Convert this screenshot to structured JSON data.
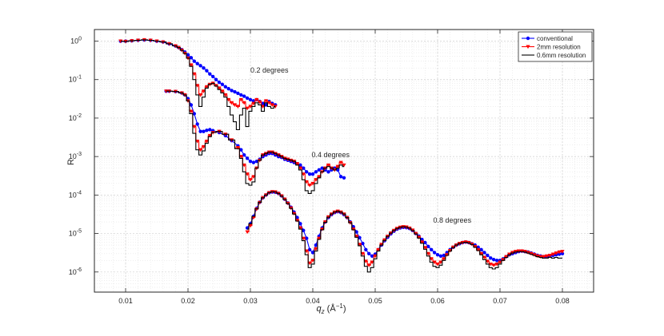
{
  "chart_data": {
    "type": "line",
    "title": "",
    "xlabel": "q",
    "xlabel_sub": "z",
    "xlabel_unit": " (Å",
    "xlabel_unit_exp": "−1",
    "xlabel_close": ")",
    "ylabel": "R",
    "xlim": [
      0.005,
      0.085
    ],
    "ylim": [
      3e-07,
      2
    ],
    "yscale": "log",
    "grid": true,
    "legend_position": "top-right",
    "x_ticks": [
      {
        "v": 0.01,
        "label": "0.01"
      },
      {
        "v": 0.02,
        "label": "0.02"
      },
      {
        "v": 0.03,
        "label": "0.03"
      },
      {
        "v": 0.04,
        "label": "0.04"
      },
      {
        "v": 0.05,
        "label": "0.05"
      },
      {
        "v": 0.06,
        "label": "0.06"
      },
      {
        "v": 0.07,
        "label": "0.07"
      },
      {
        "v": 0.08,
        "label": "0.08"
      }
    ],
    "y_ticks": [
      {
        "v": 1,
        "base": "10",
        "exp": "0"
      },
      {
        "v": 0.1,
        "base": "10",
        "exp": "-1"
      },
      {
        "v": 0.01,
        "base": "10",
        "exp": "-2"
      },
      {
        "v": 0.001,
        "base": "10",
        "exp": "-3"
      },
      {
        "v": 0.0001,
        "base": "10",
        "exp": "-4"
      },
      {
        "v": 1e-05,
        "base": "10",
        "exp": "-5"
      },
      {
        "v": 1e-06,
        "base": "10",
        "exp": "-6"
      }
    ],
    "series_styles": [
      {
        "name": "conventional",
        "color": "#0000ff",
        "marker": "circle",
        "line": "solid"
      },
      {
        "name": "2mm resolution",
        "color": "#ff0000",
        "marker": "triangle-down",
        "line": "step"
      },
      {
        "name": "0.6mm resolution",
        "color": "#000000",
        "marker": "none",
        "line": "step"
      }
    ],
    "annotations": [
      {
        "text": "0.2 degrees",
        "x": 0.03,
        "y": 0.15
      },
      {
        "text": "0.4 degrees",
        "x": 0.0398,
        "y": 0.00095
      },
      {
        "text": "0.8 degrees",
        "x": 0.0593,
        "y": 1.9e-05
      }
    ],
    "groups": [
      {
        "name": "0.2 degrees",
        "x": [
          0.0092,
          0.01,
          0.011,
          0.012,
          0.013,
          0.014,
          0.015,
          0.016,
          0.017,
          0.018,
          0.0185,
          0.019,
          0.0195,
          0.02,
          0.0205,
          0.021,
          0.0215,
          0.022,
          0.0225,
          0.023,
          0.0235,
          0.024,
          0.0245,
          0.025,
          0.0255,
          0.026,
          0.0265,
          0.027,
          0.0275,
          0.028,
          0.0285,
          0.029,
          0.0295,
          0.03,
          0.0305,
          0.031,
          0.0315,
          0.032,
          0.0325,
          0.033,
          0.0335,
          0.034
        ],
        "series": [
          {
            "name": "conventional",
            "values": [
              1.0,
              1.0,
              1.02,
              1.05,
              1.07,
              1.05,
              1.0,
              0.95,
              0.85,
              0.75,
              0.68,
              0.6,
              0.52,
              0.44,
              0.37,
              0.3,
              0.26,
              0.23,
              0.2,
              0.17,
              0.14,
              0.12,
              0.1,
              0.085,
              0.075,
              0.065,
              0.058,
              0.052,
              0.048,
              0.044,
              0.04,
              0.037,
              0.033,
              0.03,
              0.028,
              0.03,
              0.027,
              0.024,
              0.022,
              0.027,
              0.024,
              0.022
            ]
          },
          {
            "name": "2mm resolution",
            "values": [
              1.0,
              0.98,
              1.02,
              1.05,
              1.08,
              1.05,
              1.0,
              0.95,
              0.85,
              0.75,
              0.68,
              0.58,
              0.48,
              0.36,
              0.24,
              0.14,
              0.07,
              0.04,
              0.05,
              0.065,
              0.075,
              0.08,
              0.07,
              0.06,
              0.05,
              0.04,
              0.03,
              0.025,
              0.022,
              0.02,
              0.03,
              0.025,
              0.018,
              0.02,
              0.024,
              0.03,
              0.026,
              0.02,
              0.028,
              0.025,
              0.022,
              0.02
            ]
          },
          {
            "name": "0.6mm resolution",
            "values": [
              1.0,
              0.98,
              1.02,
              1.05,
              1.08,
              1.05,
              1.0,
              0.95,
              0.85,
              0.75,
              0.68,
              0.58,
              0.48,
              0.36,
              0.22,
              0.1,
              0.04,
              0.02,
              0.035,
              0.06,
              0.075,
              0.08,
              0.068,
              0.055,
              0.045,
              0.035,
              0.02,
              0.012,
              0.008,
              0.005,
              0.012,
              0.018,
              0.006,
              0.015,
              0.02,
              0.025,
              0.022,
              0.015,
              0.025,
              0.02,
              0.018,
              0.02
            ]
          }
        ]
      },
      {
        "name": "0.4 degrees",
        "x": [
          0.0165,
          0.017,
          0.018,
          0.019,
          0.0195,
          0.02,
          0.0205,
          0.021,
          0.0215,
          0.022,
          0.0225,
          0.023,
          0.0235,
          0.024,
          0.025,
          0.026,
          0.027,
          0.028,
          0.0285,
          0.029,
          0.0295,
          0.03,
          0.0305,
          0.031,
          0.0315,
          0.032,
          0.0325,
          0.033,
          0.0335,
          0.034,
          0.0345,
          0.035,
          0.0355,
          0.036,
          0.0365,
          0.037,
          0.0375,
          0.038,
          0.0385,
          0.039,
          0.0395,
          0.04,
          0.0405,
          0.041,
          0.0415,
          0.042,
          0.0425,
          0.043,
          0.0435,
          0.044,
          0.0445,
          0.045
        ],
        "series": [
          {
            "name": "conventional",
            "values": [
              0.05,
              0.05,
              0.049,
              0.045,
              0.04,
              0.032,
              0.022,
              0.013,
              0.007,
              0.0045,
              0.0045,
              0.0048,
              0.005,
              0.0047,
              0.0042,
              0.0035,
              0.0026,
              0.0019,
              0.0015,
              0.0011,
              0.0009,
              0.00075,
              0.0007,
              0.00075,
              0.00085,
              0.001,
              0.0011,
              0.0012,
              0.0012,
              0.0011,
              0.001,
              0.00095,
              0.00085,
              0.0008,
              0.00075,
              0.0007,
              0.00065,
              0.0006,
              0.0005,
              0.0004,
              0.00035,
              0.00035,
              0.0004,
              0.00045,
              0.0005,
              0.00045,
              0.0004,
              0.00045,
              0.0005,
              0.00045,
              0.0003,
              0.00028
            ]
          },
          {
            "name": "2mm resolution",
            "values": [
              0.05,
              0.05,
              0.049,
              0.045,
              0.04,
              0.028,
              0.015,
              0.006,
              0.0025,
              0.0015,
              0.0018,
              0.0025,
              0.0035,
              0.0042,
              0.0045,
              0.0038,
              0.0027,
              0.0017,
              0.001,
              0.0006,
              0.00035,
              0.00025,
              0.0003,
              0.0005,
              0.0008,
              0.0011,
              0.0012,
              0.0013,
              0.0013,
              0.0012,
              0.0011,
              0.001,
              0.0009,
              0.00085,
              0.0008,
              0.00075,
              0.00065,
              0.0005,
              0.00035,
              0.00022,
              0.00018,
              0.0002,
              0.00025,
              0.0003,
              0.0004,
              0.0005,
              0.0006,
              0.0005,
              0.00045,
              0.00055,
              0.0007,
              0.0006
            ]
          },
          {
            "name": "0.6mm resolution",
            "values": [
              0.05,
              0.05,
              0.049,
              0.045,
              0.04,
              0.028,
              0.013,
              0.004,
              0.0015,
              0.0011,
              0.0014,
              0.0022,
              0.0033,
              0.0042,
              0.0045,
              0.0038,
              0.0027,
              0.0016,
              0.0009,
              0.0004,
              0.0002,
              0.00018,
              0.00022,
              0.0005,
              0.0008,
              0.0011,
              0.0012,
              0.0013,
              0.0013,
              0.0012,
              0.0011,
              0.001,
              0.0009,
              0.00085,
              0.0008,
              0.00075,
              0.0006,
              0.00045,
              0.00025,
              0.00013,
              0.00011,
              0.00013,
              0.0002,
              0.00028,
              0.0004,
              0.0005,
              0.00055,
              0.0005,
              0.00045,
              0.0005,
              0.0006,
              0.00055
            ]
          }
        ]
      },
      {
        "name": "0.8 degrees",
        "x": [
          0.0295,
          0.03,
          0.0305,
          0.031,
          0.0315,
          0.032,
          0.0325,
          0.033,
          0.0335,
          0.034,
          0.0345,
          0.035,
          0.0355,
          0.036,
          0.0365,
          0.037,
          0.0375,
          0.038,
          0.0385,
          0.039,
          0.0395,
          0.04,
          0.0405,
          0.041,
          0.0415,
          0.042,
          0.0425,
          0.043,
          0.0435,
          0.044,
          0.0445,
          0.045,
          0.0455,
          0.046,
          0.0465,
          0.047,
          0.0475,
          0.048,
          0.0485,
          0.049,
          0.0495,
          0.05,
          0.0505,
          0.051,
          0.0515,
          0.052,
          0.0525,
          0.053,
          0.0535,
          0.054,
          0.0545,
          0.055,
          0.0555,
          0.056,
          0.0565,
          0.057,
          0.0575,
          0.058,
          0.0585,
          0.059,
          0.0595,
          0.06,
          0.0605,
          0.061,
          0.0615,
          0.062,
          0.0625,
          0.063,
          0.0635,
          0.064,
          0.0645,
          0.065,
          0.0655,
          0.066,
          0.0665,
          0.067,
          0.0675,
          0.068,
          0.0685,
          0.069,
          0.0695,
          0.07,
          0.0705,
          0.071,
          0.0715,
          0.072,
          0.0725,
          0.073,
          0.0735,
          0.074,
          0.0745,
          0.075,
          0.0755,
          0.076,
          0.0765,
          0.077,
          0.0775,
          0.078,
          0.0785,
          0.079,
          0.0795,
          0.08
        ],
        "series": [
          {
            "name": "conventional",
            "values": [
              1.4e-05,
              1.8e-05,
              2.8e-05,
              4.5e-05,
              6.5e-05,
              8.5e-05,
              0.0001,
              0.000115,
              0.00012,
              0.000118,
              0.00011,
              9.5e-05,
              7.8e-05,
              6.2e-05,
              4.8e-05,
              3.6e-05,
              2.6e-05,
              1.8e-05,
              1.2e-05,
              7.5e-06,
              3.8e-06,
              3.2e-06,
              5e-06,
              8.5e-06,
              1.4e-05,
              2e-05,
              2.6e-05,
              3.1e-05,
              3.5e-05,
              3.7e-05,
              3.5e-05,
              3.1e-05,
              2.6e-05,
              2e-05,
              1.5e-05,
              1.1e-05,
              7.8e-06,
              5.5e-06,
              3.8e-06,
              3e-06,
              2.6e-06,
              2.9e-06,
              3.8e-06,
              5e-06,
              6.5e-06,
              8e-06,
              9.8e-06,
              1.15e-05,
              1.3e-05,
              1.4e-05,
              1.45e-05,
              1.42e-05,
              1.35e-05,
              1.2e-05,
              1e-05,
              8.5e-06,
              7e-06,
              5.8e-06,
              4.6e-06,
              3.8e-06,
              3.2e-06,
              2.8e-06,
              2.6e-06,
              2.7e-06,
              3.2e-06,
              3.8e-06,
              4.4e-06,
              5e-06,
              5.4e-06,
              5.8e-06,
              6e-06,
              5.8e-06,
              5.4e-06,
              5e-06,
              4.4e-06,
              3.8e-06,
              3.2e-06,
              2.7e-06,
              2.3e-06,
              2.1e-06,
              2e-06,
              2e-06,
              2.2e-06,
              2.5e-06,
              2.8e-06,
              3e-06,
              3.2e-06,
              3.4e-06,
              3.5e-06,
              3.4e-06,
              3.3e-06,
              3.1e-06,
              2.9e-06,
              2.7e-06,
              2.6e-06,
              2.5e-06,
              2.5e-06,
              2.6e-06,
              2.7e-06,
              2.8e-06,
              2.9e-06,
              3e-06
            ]
          },
          {
            "name": "2mm resolution",
            "values": [
              1.1e-05,
              1.6e-05,
              2.6e-05,
              4.3e-05,
              6.4e-05,
              8.5e-05,
              0.0001,
              0.000115,
              0.000122,
              0.00012,
              0.00011,
              9.5e-05,
              7.8e-05,
              6.1e-05,
              4.6e-05,
              3.3e-05,
              2.2e-05,
              1.4e-05,
              7.5e-06,
              3.5e-06,
              1.7e-06,
              2e-06,
              4e-06,
              7.5e-06,
              1.3e-05,
              2e-05,
              2.7e-05,
              3.2e-05,
              3.6e-05,
              3.8e-05,
              3.6e-05,
              3.2e-05,
              2.6e-05,
              1.9e-05,
              1.3e-05,
              8.5e-06,
              5.2e-06,
              3e-06,
              1.9e-06,
              1.5e-06,
              1.8e-06,
              2.6e-06,
              3.8e-06,
              5.2e-06,
              6.8e-06,
              8.5e-06,
              1.03e-05,
              1.2e-05,
              1.35e-05,
              1.45e-05,
              1.5e-05,
              1.47e-05,
              1.38e-05,
              1.22e-05,
              1e-05,
              8e-06,
              6e-06,
              4.3e-06,
              3e-06,
              2.2e-06,
              1.8e-06,
              1.6e-06,
              1.8e-06,
              2.2e-06,
              2.8e-06,
              3.6e-06,
              4.4e-06,
              5e-06,
              5.5e-06,
              5.8e-06,
              6e-06,
              5.8e-06,
              5.3e-06,
              4.6e-06,
              3.8e-06,
              3e-06,
              2.4e-06,
              1.9e-06,
              1.6e-06,
              1.5e-06,
              1.6e-06,
              1.8e-06,
              2.1e-06,
              2.5e-06,
              2.9e-06,
              3.2e-06,
              3.4e-06,
              3.5e-06,
              3.5e-06,
              3.4e-06,
              3.2e-06,
              3e-06,
              2.8e-06,
              2.6e-06,
              2.5e-06,
              2.5e-06,
              2.6e-06,
              2.7e-06,
              2.9e-06,
              3.1e-06,
              3.3e-06,
              3.4e-06
            ]
          },
          {
            "name": "0.6mm resolution",
            "values": [
              1.3e-05,
              1.8e-05,
              2.8e-05,
              4.4e-05,
              6.5e-05,
              8.5e-05,
              0.0001,
              0.000115,
              0.000122,
              0.00012,
              0.00011,
              9.4e-05,
              7.7e-05,
              6e-05,
              4.5e-05,
              3.2e-05,
              2.1e-05,
              1.3e-05,
              6.5e-06,
              2.8e-06,
              1.3e-06,
              1.6e-06,
              3.5e-06,
              7e-06,
              1.25e-05,
              1.95e-05,
              2.65e-05,
              3.2e-05,
              3.6e-05,
              3.8e-05,
              3.6e-05,
              3.2e-05,
              2.6e-05,
              1.9e-05,
              1.25e-05,
              8e-06,
              4.8e-06,
              2.6e-06,
              1.4e-06,
              1e-06,
              1.3e-06,
              2.2e-06,
              3.5e-06,
              5e-06,
              6.6e-06,
              8.4e-06,
              1.02e-05,
              1.2e-05,
              1.35e-05,
              1.45e-05,
              1.5e-05,
              1.47e-05,
              1.37e-05,
              1.2e-05,
              9.8e-06,
              7.6e-06,
              5.6e-06,
              3.9e-06,
              2.6e-06,
              1.8e-06,
              1.4e-06,
              1.3e-06,
              1.5e-06,
              2e-06,
              2.7e-06,
              3.5e-06,
              4.3e-06,
              5e-06,
              5.5e-06,
              5.8e-06,
              5.9e-06,
              5.7e-06,
              5.2e-06,
              4.4e-06,
              3.6e-06,
              2.8e-06,
              2.1e-06,
              1.6e-06,
              1.3e-06,
              1.2e-06,
              1.3e-06,
              1.6e-06,
              2e-06,
              2.4e-06,
              2.8e-06,
              3.1e-06,
              3.3e-06,
              3.4e-06,
              3.4e-06,
              3.3e-06,
              3.1e-06,
              2.9e-06,
              2.7e-06,
              2.5e-06,
              2.4e-06,
              2.3e-06,
              2.3e-06,
              2.4e-06,
              2.3e-06,
              2.4e-06,
              2.3e-06,
              2.3e-06
            ]
          }
        ]
      }
    ]
  }
}
